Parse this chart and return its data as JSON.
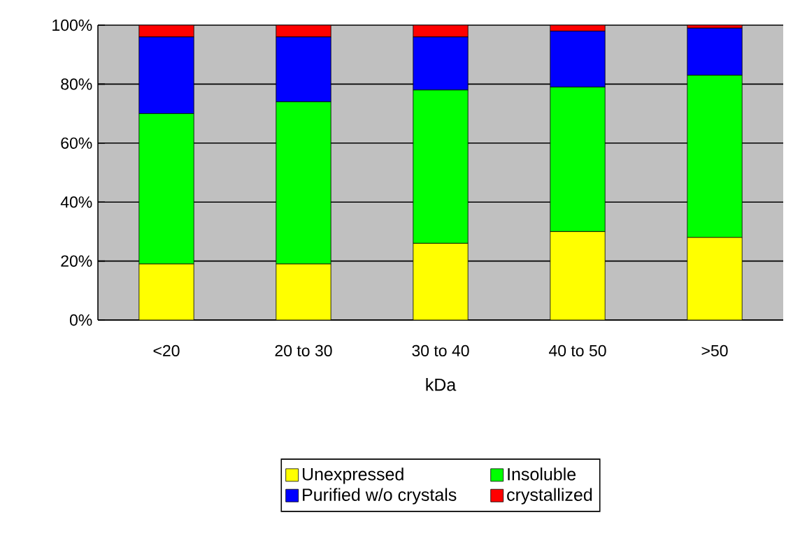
{
  "chart_data": {
    "type": "bar",
    "stacked": true,
    "xlabel": "kDa",
    "categories": [
      "<20",
      "20 to 30",
      "30 to 40",
      "40 to 50",
      ">50"
    ],
    "series": [
      {
        "name": "Unexpressed",
        "color": "#ffff00",
        "values": [
          19,
          19,
          26,
          30,
          28
        ]
      },
      {
        "name": "Insoluble",
        "color": "#00ff00",
        "values": [
          51,
          55,
          52,
          49,
          55
        ]
      },
      {
        "name": "Purified w/o crystals",
        "color": "#0000ff",
        "values": [
          26,
          22,
          18,
          19,
          16
        ]
      },
      {
        "name": "crystallized",
        "color": "#ff0000",
        "values": [
          4,
          4,
          4,
          2,
          1
        ]
      }
    ],
    "ylim": [
      0,
      100
    ],
    "yticks": [
      {
        "value": 0,
        "label": "0%"
      },
      {
        "value": 20,
        "label": "20%"
      },
      {
        "value": 40,
        "label": "40%"
      },
      {
        "value": 60,
        "label": "60%"
      },
      {
        "value": 80,
        "label": "80%"
      },
      {
        "value": 100,
        "label": "100%"
      }
    ],
    "grid": "y",
    "legend": "bottom"
  }
}
